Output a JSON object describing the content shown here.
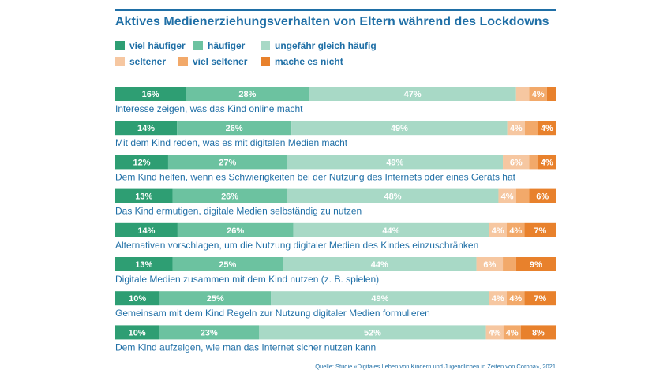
{
  "chart_data": {
    "type": "bar",
    "orientation": "horizontal-stacked",
    "title": "Aktives Medienerziehungsverhalten von Eltern während des Lockdowns",
    "xlim": [
      0,
      100
    ],
    "series": [
      {
        "name": "viel häufiger",
        "color": "#2e9e73",
        "values": [
          16,
          14,
          12,
          13,
          14,
          13,
          10,
          10
        ]
      },
      {
        "name": "häufiger",
        "color": "#6cc2a0",
        "values": [
          28,
          26,
          27,
          26,
          26,
          25,
          25,
          23
        ]
      },
      {
        "name": "ungefähr gleich häufig",
        "color": "#a8d9c6",
        "values": [
          47,
          49,
          49,
          48,
          44,
          44,
          49,
          52
        ]
      },
      {
        "name": "seltener",
        "color": "#f6c7a1",
        "values": [
          3,
          4,
          6,
          4,
          4,
          6,
          4,
          4
        ]
      },
      {
        "name": "viel seltener",
        "color": "#f2a96a",
        "values": [
          4,
          3,
          2,
          3,
          4,
          3,
          4,
          4
        ]
      },
      {
        "name": "mache es nicht",
        "color": "#e8812c",
        "values": [
          2,
          4,
          4,
          6,
          7,
          9,
          7,
          8
        ]
      }
    ],
    "labels": [
      [
        "16%",
        "28%",
        "47%",
        "",
        "4%",
        ""
      ],
      [
        "14%",
        "26%",
        "49%",
        "4%",
        "",
        "4%"
      ],
      [
        "12%",
        "27%",
        "49%",
        "6%",
        "",
        "4%"
      ],
      [
        "13%",
        "26%",
        "48%",
        "4%",
        "",
        "6%"
      ],
      [
        "14%",
        "26%",
        "44%",
        "4%",
        "4%",
        "7%"
      ],
      [
        "13%",
        "25%",
        "44%",
        "6%",
        "",
        "9%"
      ],
      [
        "10%",
        "25%",
        "49%",
        "4%",
        "4%",
        "7%"
      ],
      [
        "10%",
        "23%",
        "52%",
        "4%",
        "4%",
        "8%"
      ]
    ],
    "categories": [
      "Interesse zeigen, was das Kind online macht",
      "Mit dem Kind reden, was es mit digitalen Medien macht",
      "Dem Kind helfen, wenn es Schwierigkeiten bei der Nutzung des Internets oder eines Geräts hat",
      "Das Kind ermutigen, digitale Medien selbständig zu nutzen",
      "Alternativen vorschlagen, um die Nutzung digitaler Medien des Kindes einzuschränken",
      "Digitale Medien zusammen mit dem Kind nutzen (z. B. spielen)",
      "Gemeinsam mit dem Kind Regeln zur Nutzung digitaler Medien formulieren",
      "Dem Kind aufzeigen, wie man das Internet sicher nutzen kann"
    ],
    "source": "Quelle: Studie «Digitales Leben von Kindern und Jugendlichen in Zeiten von Corona», 2021"
  }
}
